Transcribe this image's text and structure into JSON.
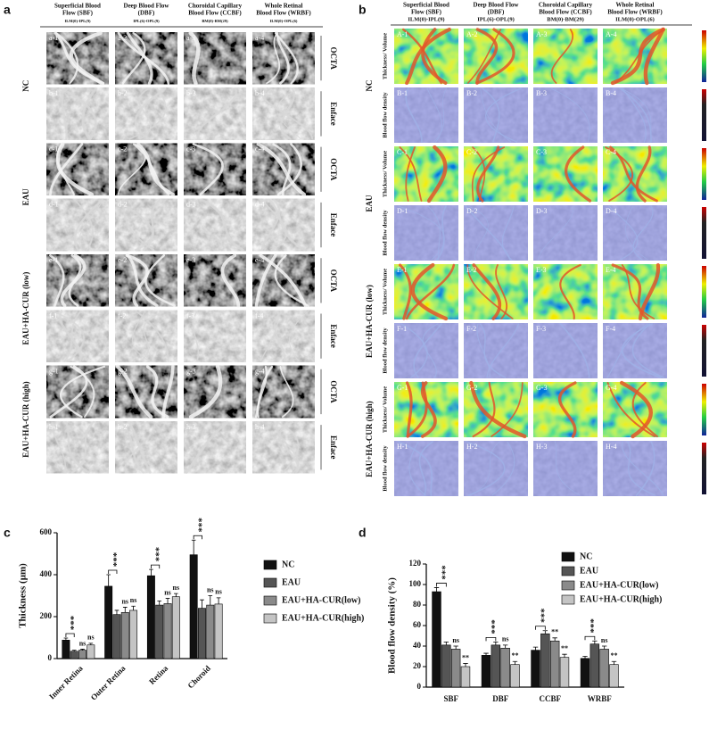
{
  "panel_a": {
    "letter": "a",
    "columns": [
      {
        "title": [
          "Superficial Blood",
          "Flow (SBF)"
        ],
        "subtitle": "ILM(0)-IPL(9)"
      },
      {
        "title": [
          "Deep Blood Flow",
          "(DBF)"
        ],
        "subtitle": "IPL(6)-OPL(9)"
      },
      {
        "title": [
          "Choroidal Capillary",
          "Blood Flow (CCBF)"
        ],
        "subtitle": "BM(0)-BM(29)"
      },
      {
        "title": [
          "Whole Retinal",
          "Blood Flow (WRBF)"
        ],
        "subtitle": "ILM(0)-OPL(6)"
      }
    ],
    "groups": [
      "NC",
      "EAU",
      "EAU+HA-CUR (low)",
      "EAU+HA-CUR (high)"
    ],
    "row_types": [
      "OCTA",
      "Enface",
      "OCTA",
      "Enface",
      "OCTA",
      "Enface",
      "OCTA",
      "Enface"
    ],
    "tiles": [
      [
        "a-1",
        "a-2",
        "a-3",
        "a-4"
      ],
      [
        "b-1",
        "b-2",
        "b-3",
        "b-4"
      ],
      [
        "c-1",
        "c-2",
        "c-3",
        "c-4"
      ],
      [
        "d-1",
        "d-2",
        "d-3",
        "d-4"
      ],
      [
        "e-1",
        "e-2",
        "e-3",
        "e-4"
      ],
      [
        "f-1",
        "f-2",
        "f-3",
        "f-4"
      ],
      [
        "g-1",
        "g-2",
        "g-3",
        "g-4"
      ],
      [
        "h-1",
        "h-2",
        "h-3",
        "h-4"
      ]
    ]
  },
  "panel_b": {
    "letter": "b",
    "columns": [
      {
        "title": [
          "Superficial Blood",
          "Flow (SBF)"
        ],
        "subtitle": "ILM(0)-IPL(9)"
      },
      {
        "title": [
          "Deep Blood Flow",
          "(DBF)"
        ],
        "subtitle": "IPL(6)-OPL(9)"
      },
      {
        "title": [
          "Choroidal Capillary",
          "Blood Flow (CCBF)"
        ],
        "subtitle": "BM(0)-BM(29)"
      },
      {
        "title": [
          "Whole Retinal",
          "Blood Flow (WRBF)"
        ],
        "subtitle": "ILM(0)-OPL(6)"
      }
    ],
    "groups": [
      "NC",
      "EAU",
      "EAU+HA-CUR (low)",
      "EAU+HA-CUR (high)"
    ],
    "row_types": [
      "Thickness/ Volume",
      "Blood flow density",
      "Thickness/ Volume",
      "Blood flow density",
      "Thickness/ Volume",
      "Blood flow density",
      "Thickness/ Volume",
      "Blood flow density"
    ],
    "tiles": [
      [
        "A-1",
        "A-2",
        "A-3",
        "A-4"
      ],
      [
        "B-1",
        "B-2",
        "B-3",
        "B-4"
      ],
      [
        "C-1",
        "C-2",
        "C-3",
        "C-4"
      ],
      [
        "D-1",
        "D-2",
        "D-3",
        "D-4"
      ],
      [
        "E-1",
        "E-2",
        "E-3",
        "E-4"
      ],
      [
        "F-1",
        "F-2",
        "F-3",
        "F-4"
      ],
      [
        "G-1",
        "G-2",
        "G-3",
        "G-4"
      ],
      [
        "H-1",
        "H-2",
        "H-3",
        "H-4"
      ]
    ]
  },
  "chart_data": [
    {
      "type": "bar",
      "letter": "c",
      "y_label": "Thickness (μm)",
      "categories": [
        "Inner Retina",
        "Outer Retina",
        "Retina",
        "Choroid"
      ],
      "ylim": [
        0,
        600
      ],
      "yticks": [
        0,
        200,
        400,
        600
      ],
      "legend": "right",
      "series": [
        {
          "name": "NC",
          "color": "#111111",
          "values": [
            88,
            345,
            395,
            495
          ],
          "errors": [
            10,
            55,
            30,
            70
          ],
          "annotations": [
            "***",
            "***",
            "***",
            "***"
          ]
        },
        {
          "name": "EAU",
          "color": "#555555",
          "values": [
            35,
            210,
            255,
            240
          ],
          "errors": [
            5,
            20,
            20,
            40
          ]
        },
        {
          "name": "EAU+HA-CUR(low)",
          "color": "#8a8a8a",
          "values": [
            40,
            220,
            262,
            255
          ],
          "errors": [
            5,
            25,
            25,
            45
          ],
          "annotations": [
            "ns",
            "ns",
            "ns",
            "ns"
          ]
        },
        {
          "name": "EAU+HA-CUR(high)",
          "color": "#c4c4c4",
          "values": [
            65,
            230,
            295,
            260
          ],
          "errors": [
            8,
            20,
            15,
            30
          ],
          "annotations": [
            "ns",
            "ns",
            "ns",
            "ns"
          ]
        }
      ]
    },
    {
      "type": "bar",
      "letter": "d",
      "y_label": "Blood flow density (%)",
      "categories": [
        "SBF",
        "DBF",
        "CCBF",
        "WRBF"
      ],
      "ylim": [
        0,
        120
      ],
      "yticks": [
        0,
        20,
        40,
        60,
        80,
        100,
        120
      ],
      "legend": "upper right",
      "series": [
        {
          "name": "NC",
          "color": "#111111",
          "values": [
            93,
            31,
            36,
            28
          ],
          "errors": [
            4,
            2,
            3,
            2
          ],
          "annotations": [
            "***",
            "***",
            "***",
            "***"
          ]
        },
        {
          "name": "EAU",
          "color": "#555555",
          "values": [
            41,
            41,
            52,
            42
          ],
          "errors": [
            3,
            3,
            3,
            3
          ]
        },
        {
          "name": "EAU+HA-CUR(low)",
          "color": "#8a8a8a",
          "values": [
            37,
            38,
            45,
            37
          ],
          "errors": [
            3,
            3,
            3,
            3
          ],
          "annotations": [
            "ns",
            "ns",
            "**",
            "ns"
          ]
        },
        {
          "name": "EAU+HA-CUR(high)",
          "color": "#c4c4c4",
          "values": [
            20,
            22,
            29,
            22
          ],
          "errors": [
            3,
            3,
            3,
            3
          ],
          "annotations": [
            "**",
            "**",
            "**",
            "**"
          ]
        }
      ]
    }
  ]
}
